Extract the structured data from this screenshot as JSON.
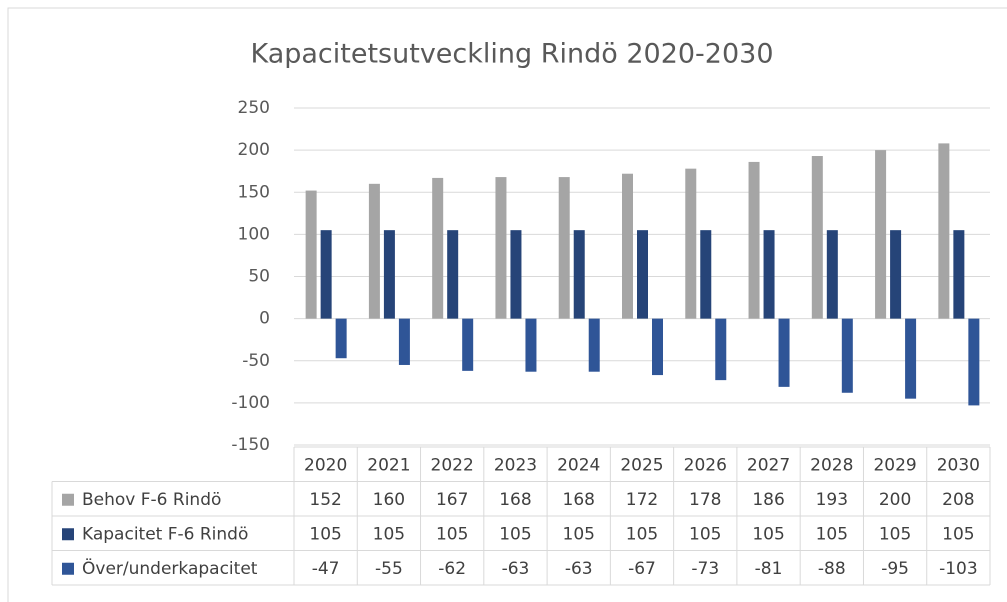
{
  "chart_data": {
    "type": "bar",
    "title": "Kapacitetsutveckling Rindö 2020-2030",
    "categories": [
      "2020",
      "2021",
      "2022",
      "2023",
      "2024",
      "2025",
      "2026",
      "2027",
      "2028",
      "2029",
      "2030"
    ],
    "series": [
      {
        "name": "Behov F-6 Rindö",
        "color": "#a5a5a5",
        "values": [
          152,
          160,
          167,
          168,
          168,
          172,
          178,
          186,
          193,
          200,
          208
        ]
      },
      {
        "name": "Kapacitet F-6 Rindö",
        "color": "#264478",
        "values": [
          105,
          105,
          105,
          105,
          105,
          105,
          105,
          105,
          105,
          105,
          105
        ]
      },
      {
        "name": "Över/underkapacitet",
        "color": "#2f5597",
        "values": [
          -47,
          -55,
          -62,
          -63,
          -63,
          -67,
          -73,
          -81,
          -88,
          -95,
          -103
        ]
      }
    ],
    "ylim": [
      -150,
      250
    ],
    "yticks": [
      -150,
      -100,
      -50,
      0,
      50,
      100,
      150,
      200,
      250
    ],
    "grid": true
  }
}
